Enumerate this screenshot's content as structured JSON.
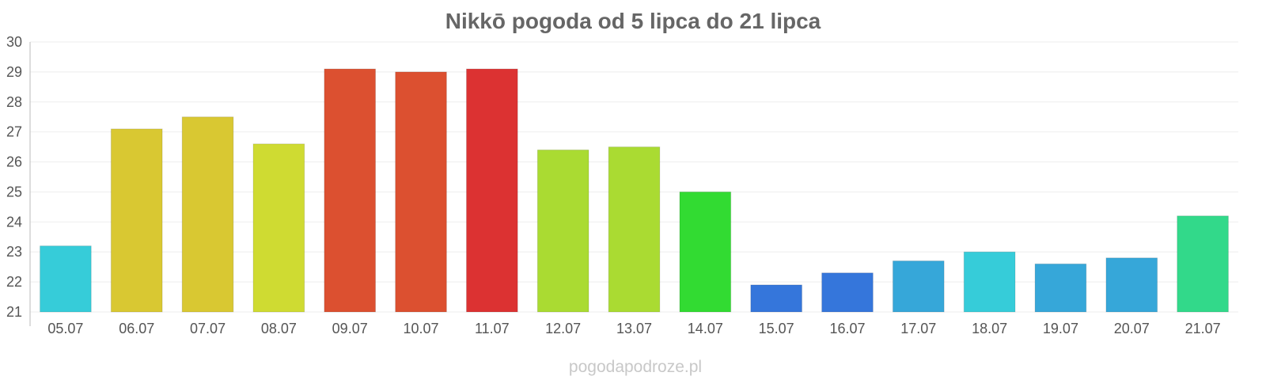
{
  "chart_data": {
    "type": "bar",
    "title": "Nikkō pogoda od 5 lipca do 21 lipca",
    "categories": [
      "05.07",
      "06.07",
      "07.07",
      "08.07",
      "09.07",
      "10.07",
      "11.07",
      "12.07",
      "13.07",
      "14.07",
      "15.07",
      "16.07",
      "17.07",
      "18.07",
      "19.07",
      "20.07",
      "21.07"
    ],
    "values": [
      23.2,
      27.1,
      27.5,
      26.6,
      29.1,
      29.0,
      29.1,
      26.4,
      26.5,
      25.0,
      21.9,
      22.3,
      22.7,
      23.0,
      22.6,
      22.8,
      24.2
    ],
    "colors": [
      "#36ccd9",
      "#d9c832",
      "#d9c832",
      "#cfdb32",
      "#dc5030",
      "#dc5030",
      "#dc3232",
      "#aadb32",
      "#aadb32",
      "#32db32",
      "#3576db",
      "#3576db",
      "#36a7d9",
      "#36ccd9",
      "#36a7d9",
      "#36a7d9",
      "#32d98a"
    ],
    "ylim": [
      21,
      30
    ],
    "yticks": [
      "21",
      "22",
      "23",
      "24",
      "25",
      "26",
      "27",
      "28",
      "29",
      "30"
    ],
    "xlabel": "",
    "ylabel": "",
    "grid": true,
    "legend": "none"
  },
  "watermark": "pogodapodroze.pl"
}
